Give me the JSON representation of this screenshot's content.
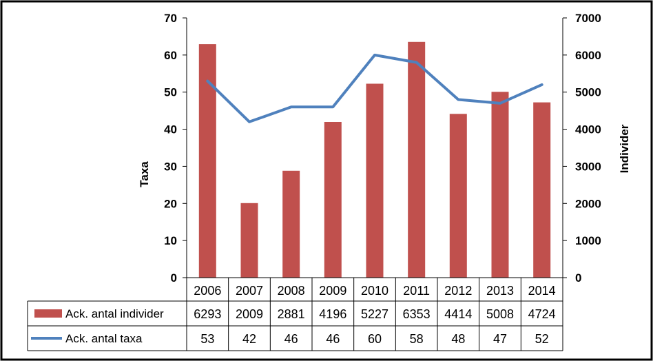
{
  "chart_data": {
    "type": "bar",
    "title": "",
    "categories": [
      "2006",
      "2007",
      "2008",
      "2009",
      "2010",
      "2011",
      "2012",
      "2013",
      "2014"
    ],
    "series": [
      {
        "name": "Ack. antal individer",
        "kind": "bar",
        "axis": "right",
        "color": "#c0504d",
        "values": [
          6293,
          2009,
          2881,
          4196,
          5227,
          6353,
          4414,
          5008,
          4724
        ]
      },
      {
        "name": "Ack. antal taxa",
        "kind": "line",
        "axis": "left",
        "color": "#4f81bd",
        "values": [
          53,
          42,
          46,
          46,
          60,
          58,
          48,
          47,
          52
        ]
      }
    ],
    "y_left": {
      "label": "Taxa",
      "ylim": [
        0,
        70
      ],
      "ticks": [
        "0",
        "10",
        "20",
        "30",
        "40",
        "50",
        "60",
        "70"
      ]
    },
    "y_right": {
      "label": "Individer",
      "ylim": [
        0,
        7000
      ],
      "ticks": [
        "0",
        "1000",
        "2000",
        "3000",
        "4000",
        "5000",
        "6000",
        "7000"
      ]
    },
    "data_table": true,
    "legend": "in data table"
  }
}
